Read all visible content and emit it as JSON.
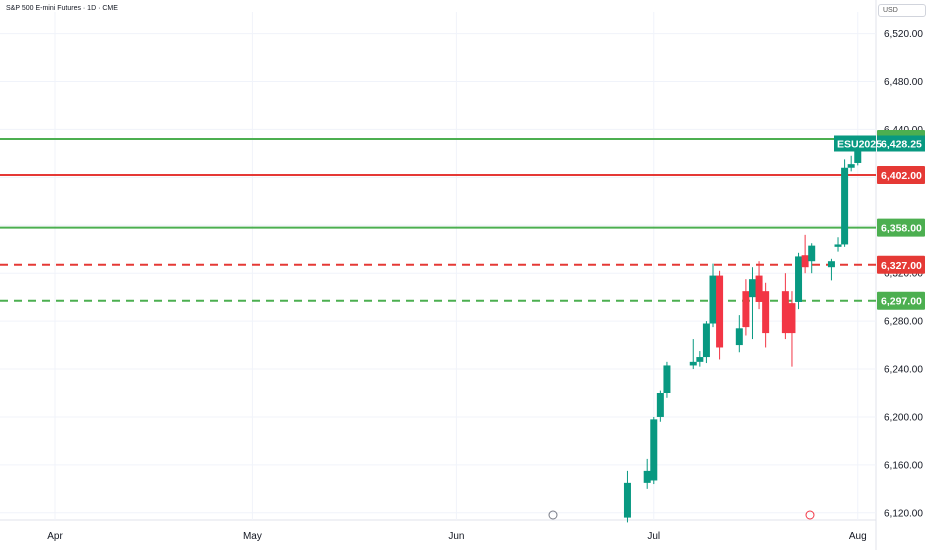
{
  "header": {
    "title": "S&P 500 E-mini Futures · 1D · CME",
    "currency": "USD"
  },
  "colors": {
    "up": "#089981",
    "down": "#f23645",
    "support": "#4caf50",
    "resistance": "#e53935",
    "symbol_tag": "#089981"
  },
  "chart_data": {
    "type": "candlestick",
    "symbol": "ESU2025",
    "last_price": "6,428.25",
    "x_ticks": [
      "Apr",
      "May",
      "Jun",
      "Jul",
      "Aug"
    ],
    "y_ticks": [
      "6,520.00",
      "6,480.00",
      "6,440.00",
      "6,400.00",
      "6,360.00",
      "6,320.00",
      "6,280.00",
      "6,240.00",
      "6,200.00",
      "6,160.00",
      "6,120.00"
    ],
    "ylim": [
      6114,
      6538
    ],
    "levels": [
      {
        "value": 6432,
        "label": "6,432.00",
        "color": "support",
        "style": "solid"
      },
      {
        "value": 6402,
        "label": "6,402.00",
        "color": "resistance",
        "style": "solid"
      },
      {
        "value": 6358,
        "label": "6,358.00",
        "color": "support",
        "style": "solid"
      },
      {
        "value": 6327,
        "label": "6,327.00",
        "color": "resistance",
        "style": "dashed"
      },
      {
        "value": 6297,
        "label": "6,297.00",
        "color": "support",
        "style": "dashed"
      }
    ],
    "candles": [
      {
        "date": "2025-06-27",
        "o": 6116,
        "h": 6155,
        "l": 6112,
        "c": 6145
      },
      {
        "date": "2025-06-30",
        "o": 6145,
        "h": 6165,
        "l": 6140,
        "c": 6155
      },
      {
        "date": "2025-07-01",
        "o": 6147,
        "h": 6200,
        "l": 6144,
        "c": 6198
      },
      {
        "date": "2025-07-02",
        "o": 6200,
        "h": 6222,
        "l": 6196,
        "c": 6220
      },
      {
        "date": "2025-07-03",
        "o": 6220,
        "h": 6246,
        "l": 6216,
        "c": 6243
      },
      {
        "date": "2025-07-07",
        "o": 6243,
        "h": 6265,
        "l": 6240,
        "c": 6246
      },
      {
        "date": "2025-07-08",
        "o": 6246,
        "h": 6255,
        "l": 6242,
        "c": 6250
      },
      {
        "date": "2025-07-09",
        "o": 6250,
        "h": 6280,
        "l": 6245,
        "c": 6278
      },
      {
        "date": "2025-07-10",
        "o": 6278,
        "h": 6328,
        "l": 6275,
        "c": 6318
      },
      {
        "date": "2025-07-11",
        "o": 6318,
        "h": 6322,
        "l": 6248,
        "c": 6258
      },
      {
        "date": "2025-07-14",
        "o": 6260,
        "h": 6285,
        "l": 6254,
        "c": 6274
      },
      {
        "date": "2025-07-15",
        "o": 6305,
        "h": 6315,
        "l": 6268,
        "c": 6275
      },
      {
        "date": "2025-07-16",
        "o": 6300,
        "h": 6325,
        "l": 6265,
        "c": 6315
      },
      {
        "date": "2025-07-17",
        "o": 6318,
        "h": 6330,
        "l": 6290,
        "c": 6296
      },
      {
        "date": "2025-07-18",
        "o": 6305,
        "h": 6312,
        "l": 6258,
        "c": 6270
      },
      {
        "date": "2025-07-21",
        "o": 6305,
        "h": 6320,
        "l": 6265,
        "c": 6270
      },
      {
        "date": "2025-07-22",
        "o": 6295,
        "h": 6305,
        "l": 6242,
        "c": 6270
      },
      {
        "date": "2025-07-23",
        "o": 6296,
        "h": 6337,
        "l": 6290,
        "c": 6334
      },
      {
        "date": "2025-07-24",
        "o": 6335,
        "h": 6352,
        "l": 6320,
        "c": 6325
      },
      {
        "date": "2025-07-25",
        "o": 6330,
        "h": 6345,
        "l": 6320,
        "c": 6343
      },
      {
        "date": "2025-07-28",
        "o": 6325,
        "h": 6332,
        "l": 6314,
        "c": 6330
      },
      {
        "date": "2025-07-29",
        "o": 6342,
        "h": 6350,
        "l": 6338,
        "c": 6344
      },
      {
        "date": "2025-07-30",
        "o": 6344,
        "h": 6415,
        "l": 6342,
        "c": 6408
      },
      {
        "date": "2025-07-31",
        "o": 6408,
        "h": 6418,
        "l": 6405,
        "c": 6411
      },
      {
        "date": "2025-08-01",
        "o": 6412,
        "h": 6432,
        "l": 6410,
        "c": 6429
      }
    ]
  }
}
